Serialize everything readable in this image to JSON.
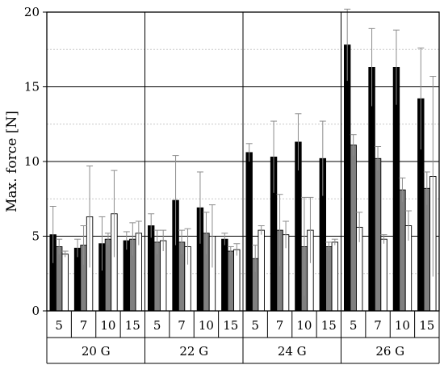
{
  "chart_data": {
    "type": "bar",
    "title": "",
    "xlabel": "",
    "ylabel": "Max. force [N]",
    "ylim": [
      0,
      20
    ],
    "yticks": [
      0,
      5,
      10,
      15,
      20
    ],
    "grid": true,
    "groups": [
      "20 G",
      "22 G",
      "24 G",
      "26 G"
    ],
    "subgroups": [
      "5",
      "7",
      "10",
      "15"
    ],
    "series": [
      {
        "color": "#000000",
        "values": [
          5.1,
          4.2,
          4.5,
          4.7,
          5.7,
          7.4,
          6.9,
          4.8,
          10.6,
          10.3,
          11.3,
          10.2,
          17.8,
          16.3,
          16.3,
          14.2
        ],
        "errors": [
          1.9,
          0.6,
          1.8,
          0.6,
          0.8,
          3.0,
          2.4,
          0.4,
          0.6,
          2.4,
          1.9,
          2.5,
          2.4,
          2.6,
          2.5,
          3.4
        ]
      },
      {
        "color": "#808080",
        "values": [
          4.3,
          4.4,
          4.8,
          4.8,
          4.6,
          4.6,
          5.2,
          4.0,
          3.5,
          5.4,
          4.3,
          4.3,
          11.1,
          10.2,
          8.1,
          8.2
        ],
        "errors": [
          0.5,
          1.3,
          0.4,
          1.1,
          0.8,
          0.8,
          1.4,
          0.3,
          0.9,
          2.4,
          3.3,
          0.3,
          0.7,
          0.8,
          0.8,
          1.1
        ]
      },
      {
        "color": "#ffffff",
        "values": [
          3.8,
          6.3,
          6.5,
          5.2,
          4.7,
          4.3,
          5.0,
          4.1,
          5.4,
          5.1,
          5.4,
          4.6,
          5.6,
          4.8,
          5.7,
          9.0
        ],
        "errors": [
          0.2,
          3.4,
          2.9,
          0.8,
          0.7,
          1.2,
          2.1,
          0.4,
          0.3,
          0.9,
          2.2,
          0.2,
          1.0,
          0.3,
          1.0,
          6.7
        ]
      }
    ]
  }
}
